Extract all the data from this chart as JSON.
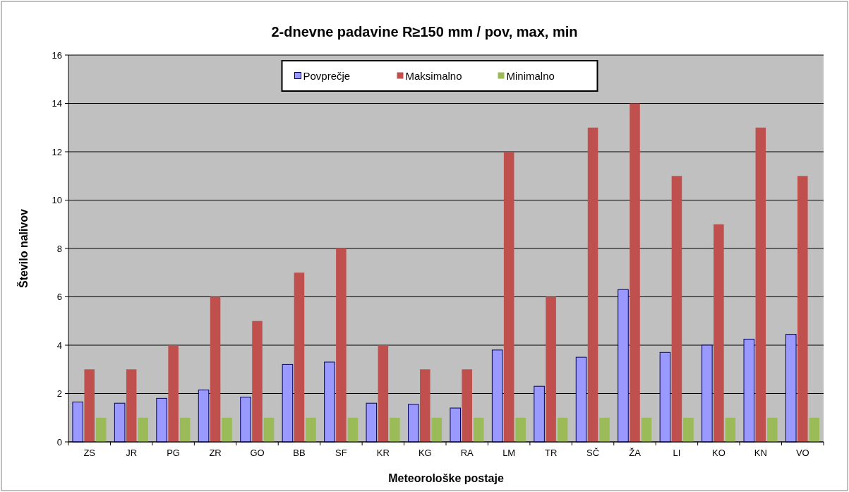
{
  "chart_data": {
    "type": "bar",
    "title": "2-dnevne padavine R≥150 mm / pov, max, min",
    "xlabel": "Meteorološke postaje",
    "ylabel": "Število nalivov",
    "categories": [
      "ZS",
      "JR",
      "PG",
      "ZR",
      "GO",
      "BB",
      "SF",
      "KR",
      "KG",
      "RA",
      "LM",
      "TR",
      "SČ",
      "ŽA",
      "LI",
      "KO",
      "KN",
      "VO"
    ],
    "series": [
      {
        "name": "Povprečje",
        "color": "#9999ff",
        "values": [
          1.65,
          1.6,
          1.8,
          2.15,
          1.85,
          3.2,
          3.3,
          1.6,
          1.55,
          1.4,
          3.8,
          2.3,
          3.5,
          6.3,
          3.7,
          4.0,
          4.25,
          4.45
        ]
      },
      {
        "name": "Maksimalno",
        "color": "#c0504d",
        "values": [
          3,
          3,
          4,
          6,
          5,
          7,
          8,
          4,
          3,
          3,
          12,
          6,
          13,
          14,
          11,
          9,
          13,
          11
        ]
      },
      {
        "name": "Minimalno",
        "color": "#9bbb59",
        "values": [
          1,
          1,
          1,
          1,
          1,
          1,
          1,
          1,
          1,
          1,
          1,
          1,
          1,
          1,
          1,
          1,
          1,
          1
        ]
      }
    ],
    "ylim": [
      0,
      16
    ],
    "yticks": [
      0,
      2,
      4,
      6,
      8,
      10,
      12,
      14,
      16
    ],
    "grid": "y",
    "legend": "top"
  }
}
